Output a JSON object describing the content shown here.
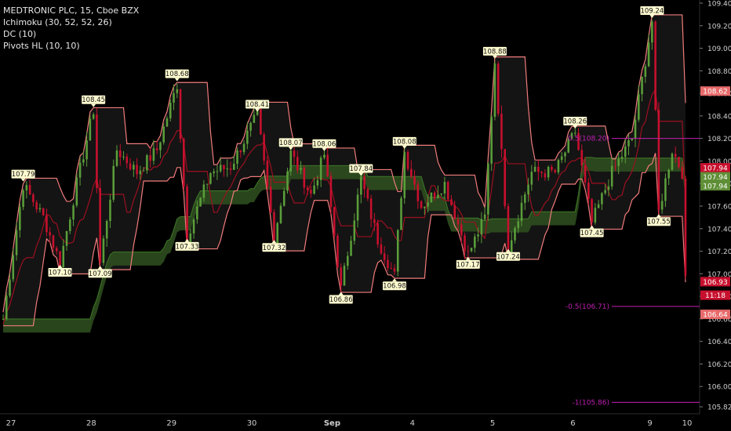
{
  "header": {
    "title": "MEDTRONIC PLC, 15, Cboe BZX",
    "indicators": [
      "Ichimoku (30, 52, 52, 26)",
      "DC (10)",
      "Pivots HL (10, 10)"
    ]
  },
  "chart_data": {
    "type": "candlestick",
    "ylim": [
      105.8,
      109.4
    ],
    "y_ticks": [
      "105.82",
      "106.00",
      "106.20",
      "106.40",
      "106.60",
      "106.80",
      "107.00",
      "107.20",
      "107.40",
      "107.60",
      "107.80",
      "108.00",
      "108.20",
      "108.40",
      "108.60",
      "108.80",
      "109.00",
      "109.20",
      "109.40"
    ],
    "x_labels": [
      "27",
      "28",
      "29",
      "30",
      "Sep",
      "4",
      "5",
      "6",
      "9",
      "10"
    ],
    "pivot_highs": [
      {
        "label": "108.68",
        "bar": 52
      },
      {
        "label": "108.45",
        "bar": 27
      },
      {
        "label": "108.41",
        "bar": 76
      },
      {
        "label": "108.07",
        "bar": 86
      },
      {
        "label": "108.06",
        "bar": 96
      },
      {
        "label": "108.08",
        "bar": 120
      },
      {
        "label": "108.88",
        "bar": 147
      },
      {
        "label": "108.26",
        "bar": 171
      },
      {
        "label": "109.24",
        "bar": 194
      },
      {
        "label": "107.79",
        "bar": 6
      },
      {
        "label": "107.84",
        "bar": 107
      }
    ],
    "pivot_lows": [
      {
        "label": "107.10",
        "bar": 17
      },
      {
        "label": "107.09",
        "bar": 29
      },
      {
        "label": "107.33",
        "bar": 55
      },
      {
        "label": "107.32",
        "bar": 81
      },
      {
        "label": "106.86",
        "bar": 101
      },
      {
        "label": "106.98",
        "bar": 117
      },
      {
        "label": "107.17",
        "bar": 139
      },
      {
        "label": "107.24",
        "bar": 151
      },
      {
        "label": "107.45",
        "bar": 176
      },
      {
        "label": "107.55",
        "bar": 196
      }
    ],
    "fib_levels": [
      {
        "label": "-0.5(106.71)",
        "value": 106.71
      },
      {
        "label": "0.5(108.20)",
        "value": 108.2
      },
      {
        "label": "-1(105.86)",
        "value": 105.86
      }
    ],
    "price_tags": [
      {
        "label": "108.62",
        "value": 108.62,
        "color": "#e86a6a"
      },
      {
        "label": "107.94",
        "value": 107.94,
        "color": "#c8102e"
      },
      {
        "label": "107.94",
        "value": 107.86,
        "color": "#5f8f37"
      },
      {
        "label": "107.94",
        "value": 107.78,
        "color": "#5f8f37"
      },
      {
        "label": "106.93",
        "value": 106.93,
        "color": "#c8102e"
      },
      {
        "label": "11:18",
        "value": 106.81,
        "color": "#c8102e"
      },
      {
        "label": "106.64",
        "value": 106.64,
        "color": "#e86a6a"
      }
    ],
    "colors": {
      "up": "#5a9e3a",
      "down": "#c8102e",
      "channel": "#f07b7b",
      "cloud": "#2d4d1e",
      "fib": "#c21fb4"
    }
  }
}
